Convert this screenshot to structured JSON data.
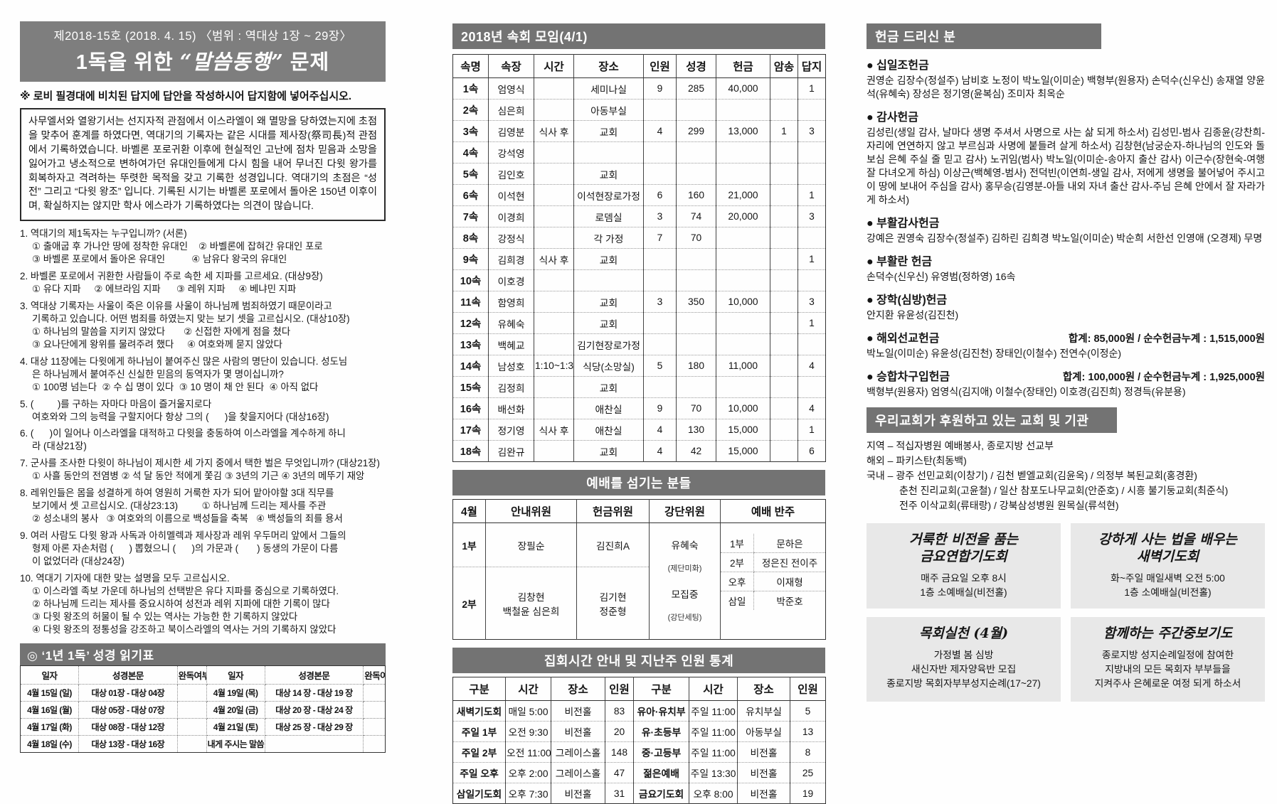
{
  "masthead": {
    "issue_line": "제2018-15호  (2018. 4. 15)  〈범위 : 역대상 1장 ~ 29장〉",
    "title_prefix": "1독을 위한",
    "title_quoted": "“말씀동행”",
    "title_suffix": "문제"
  },
  "left": {
    "notice": "※ 로비 필경대에 비치된 답지에 답안을 작성하시어 답지함에 넣어주십시오.",
    "intro": "사무엘서와 열왕기서는 선지자적 관점에서 이스라엘이 왜 멸망을 당하였는지에 초점을 맞추어 훈계를 하였다면, 역대기의 기록자는 같은 시대를 제사장(祭司長)적 관점에서 기록하였습니다. 바벨론 포로귀환 이후에 현실적인 고난에 점차 믿음과 소망을 잃어가고 냉소적으로 변하여가던 유대인들에게 다시 힘을 내어 무너진 다윗 왕가를 회복하자고 격려하는 뚜렷한 목적을 갖고 기록한 성경입니다. 역대기의 초점은 “성전” 그리고 “다윗 왕조” 입니다. 기록된 시기는 바벨론 포로에서 돌아온 150년 이후이며, 확실하지는 않지만 학사 에스라가 기록하였다는 의견이 많습니다.",
    "questions": [
      [
        "1. 역대기의 제1독자는 누구입니까? (서론)",
        "① 출애굽 후 가나안 땅에 정착한 유대인    ② 바벨론에 잡혀간 유대인 포로",
        "③ 바벨론 포로에서 돌아온 유대인          ④ 남유다 왕국의 유대인"
      ],
      [
        "2. 바벨론 포로에서 귀환한 사람들이 주로 속한 세 지파를 고르세요. (대상9장)",
        "① 유다 지파     ② 에브라임 지파      ③ 레위 지파     ④ 베냐민 지파"
      ],
      [
        "3. 역대상 기록자는 사울이 죽은 이유를 사울이 하나님께 범죄하였기 때문이라고",
        "기록하고 있습니다. 어떤 범죄를 하였는지 맞는 보기 셋을 고르십시오. (대상10장)",
        "① 하나님의 말씀을 지키지 않았다       ② 신접한 자에게 점을 쳤다",
        "③ 요나단에게 왕위를 물려주려 했다     ④ 여호와께 묻지 않았다"
      ],
      [
        "4. 대상 11장에는 다윗에게 하나님이 붙여주신 많은 사람의 명단이 있습니다. 성도님",
        "은 하나님께서 붙여주신 신실한 믿음의 동역자가 몇 명이십니까?",
        "① 100명 넘는다  ② 수 십 명이 있다  ③ 10 명이 채 안 된다  ④ 아직 없다"
      ],
      [
        "5. (         )를 구하는 자마다 마음이 즐거울지로다",
        "여호와와 그의 능력을 구할지어다 항상 그의 (      )을 찾을지어다 (대상16장)"
      ],
      [
        "6. (      )이 일어나 이스라엘을 대적하고 다윗을 충동하여 이스라엘을 계수하게 하니",
        "라 (대상21장)"
      ],
      [
        "7. 군사를 조사한 다윗이 하나님이 제시한 세 가지 중에서 택한 벌은 무엇입니까? (대상21장)",
        "① 사흘 동안의 전염병 ② 석 달 동안 적에게 쫓김 ③ 3년의 기근 ④ 3년의 메뚜기 재앙"
      ],
      [
        "8. 레위인들은 몸을 성결하게 하여 영원히 거룩한 자가 되어 맡아야할 3대 직무를",
        "보기에서 셋 고르십시오. (대상23:13)         ① 하나님께 드리는 제사를 주관",
        "② 성소내의 봉사   ③ 여호와의 이름으로 백성들을 축복   ④ 백성들의 죄를 용서"
      ],
      [
        "9. 여러 사람도 다윗 왕과 사독과 아히멜렉과 제사장과 레위 우두머리 앞에서 그들의",
        "형제 아론 자손처럼 (      ) 뽑혔으니 (      )의 가문과 (       ) 동생의 가문이 다름",
        "이 없었더라 (대상24장)"
      ],
      [
        "10. 역대기 기자에 대한 맞는 설명을 모두 고르십시오.",
        "① 이스라엘 족보 가운데 하나님의 선택받은 유다 지파를 중심으로 기록하였다.",
        "② 하나님께 드리는 제사를 중요시하여 성전과 레위 지파에 대한 기록이 많다",
        "③ 다윗 왕조의 허물이 될 수 있는 역사는 가능한 한 기록하지 않았다",
        "④ 다윗 왕조의 정통성을 강조하고 북이스라엘의 역사는 거의 기록하지 않았다"
      ]
    ],
    "reading": {
      "title": "◎  ‘1년 1독’   성경 읽기표",
      "headers": [
        "일자",
        "성경본문",
        "완독여부",
        "일자",
        "성경본문",
        "완독여부"
      ],
      "rows": [
        [
          "4월 15일 (일)",
          "대상 01장 - 대상 04장",
          "",
          "4월 19일 (목)",
          "대상 14 장 - 대상 19 장",
          ""
        ],
        [
          "4월 16일 (월)",
          "대상 05장 - 대상 07장",
          "",
          "4월 20일 (금)",
          "대상 20 장 - 대상 24 장",
          ""
        ],
        [
          "4월 17일 (화)",
          "대상 08장 - 대상 12장",
          "",
          "4월 21일 (토)",
          "대상 25 장 - 대상 29 장",
          ""
        ],
        [
          "4월 18일 (수)",
          "대상 13장 - 대상 16장",
          "",
          "내게 주시는 말씀",
          "",
          ""
        ]
      ]
    }
  },
  "middle": {
    "sokhoe": {
      "title": "2018년 속회 모임(4/1)",
      "headers": [
        "속명",
        "속장",
        "시간",
        "장소",
        "인원",
        "성경",
        "헌금",
        "암송",
        "답지"
      ],
      "rows": [
        [
          "1속",
          "엄영식",
          "",
          "세미나실",
          "9",
          "285",
          "40,000",
          "",
          "1"
        ],
        [
          "2속",
          "심은희",
          "",
          "아동부실",
          "",
          "",
          "",
          "",
          ""
        ],
        [
          "3속",
          "김영분",
          "식사 후",
          "교회",
          "4",
          "299",
          "13,000",
          "1",
          "3"
        ],
        [
          "4속",
          "강석영",
          "",
          "",
          "",
          "",
          "",
          "",
          ""
        ],
        [
          "5속",
          "김인호",
          "",
          "교회",
          "",
          "",
          "",
          "",
          ""
        ],
        [
          "6속",
          "이석현",
          "",
          "이석현장로가정",
          "6",
          "160",
          "21,000",
          "",
          "1"
        ],
        [
          "7속",
          "이경희",
          "",
          "로뎀실",
          "3",
          "74",
          "20,000",
          "",
          "3"
        ],
        [
          "8속",
          "강정식",
          "",
          "각 가정",
          "7",
          "70",
          "",
          "",
          ""
        ],
        [
          "9속",
          "김희경",
          "식사 후",
          "교회",
          "",
          "",
          "",
          "",
          "1"
        ],
        [
          "10속",
          "이호경",
          "",
          "",
          "",
          "",
          "",
          "",
          ""
        ],
        [
          "11속",
          "함영희",
          "",
          "교회",
          "3",
          "350",
          "10,000",
          "",
          "3"
        ],
        [
          "12속",
          "유혜숙",
          "",
          "교회",
          "",
          "",
          "",
          "",
          "1"
        ],
        [
          "13속",
          "백혜교",
          "",
          "김기현장로가정",
          "",
          "",
          "",
          "",
          ""
        ],
        [
          "14속",
          "남성호",
          "1:10~1:30",
          "식당(소망실)",
          "5",
          "180",
          "11,000",
          "",
          "4"
        ],
        [
          "15속",
          "김정희",
          "",
          "교회",
          "",
          "",
          "",
          "",
          ""
        ],
        [
          "16속",
          "배선화",
          "",
          "애찬실",
          "9",
          "70",
          "10,000",
          "",
          "4"
        ],
        [
          "17속",
          "정기영",
          "식사 후",
          "애찬실",
          "4",
          "130",
          "15,000",
          "",
          "1"
        ],
        [
          "18속",
          "김완규",
          "",
          "교회",
          "4",
          "42",
          "15,000",
          "",
          "6"
        ]
      ]
    },
    "worship": {
      "title": "예배를 섬기는 분들",
      "headers": [
        "4월",
        "안내위원",
        "헌금위원",
        "강단위원",
        "예배 반주"
      ],
      "r1_label": "1부",
      "r1_guide": "장필순",
      "r1_offering": "김진희A",
      "r2_label": "2부",
      "r2_guide": [
        "김창현",
        "백철윤 심은희"
      ],
      "r2_offering": [
        "김기현",
        "정준형"
      ],
      "altar": [
        "유혜숙",
        "(제단미화)",
        "모집중",
        "(강단세팅)"
      ],
      "accompanists": [
        [
          "1부",
          "문하은"
        ],
        [
          "2부",
          "정은진 전이주"
        ],
        [
          "오후",
          "이재형"
        ],
        [
          "삼일",
          "박준호"
        ]
      ]
    },
    "stats": {
      "title": "집회시간 안내 및 지난주 인원 통계",
      "headers": [
        "구분",
        "시간",
        "장소",
        "인원",
        "구분",
        "시간",
        "장소",
        "인원"
      ],
      "rows": [
        [
          "새벽기도회",
          "매일 5:00",
          "비전홀",
          "83",
          "유아·유치부",
          "주일 11:00",
          "유치부실",
          "5"
        ],
        [
          "주일 1부",
          "오전 9:30",
          "비전홀",
          "20",
          "유·초등부",
          "주일 11:00",
          "아동부실",
          "13"
        ],
        [
          "주일 2부",
          "오전 11:00",
          "그레이스홀",
          "148",
          "중·고등부",
          "주일 11:00",
          "비전홀",
          "8"
        ],
        [
          "주일 오후",
          "오후 2:00",
          "그레이스홀",
          "47",
          "젊은예배",
          "주일 13:30",
          "비전홀",
          "25"
        ],
        [
          "삼일기도회",
          "오후 7:30",
          "비전홀",
          "31",
          "금요기도회",
          "오후 8:00",
          "비전홀",
          "19"
        ]
      ]
    }
  },
  "right": {
    "offerings_title": "헌금 드리신 분",
    "sections": [
      {
        "name": "● 십일조헌금",
        "total": "",
        "body": "권영순 김장수(정설주) 남비호 노정이 박노일(이미순) 백형부(원용자) 손덕수(신우신) 송재열 양윤석(유혜숙) 장성은 정기영(윤복심) 조미자 최옥순"
      },
      {
        "name": "● 감사헌금",
        "total": "",
        "body": "김성린(생일 감사, 날마다 생명 주셔서 사명으로 사는 삶 되게 하소서) 김성민-범사 김종윤(강찬희-자리에 연연하지 않고 부르심과 사명에 붙들려 살게 하소서) 김창현(남궁순자-하나님의 인도와 돌보심 은혜 주실 줄 믿고 감사) 노귀임(범사) 박노일(이미순-송아지 출산 감사) 이근수(장현숙-여행 잘 다녀오게 하심) 이상근(백혜영-범사) 전덕빈(이연희-생일 감사, 저에게 생명을 불어넣어 주시고 이 땅에 보내어 주심을 감사) 홍무승(김영분-아들 내외 자녀 출산 감사-주님 은혜 안에서 잘 자라가게 하소서)"
      },
      {
        "name": "● 부활감사헌금",
        "total": "",
        "body": "강예은 권영숙 김장수(정설주) 김하린 김희경 박노일(이미순) 박순희 서한선 인영애 (오경제) 무명"
      },
      {
        "name": "● 부활란 헌금",
        "total": "",
        "body": "손덕수(신우신) 유영범(정하영) 16속"
      },
      {
        "name": "● 장학(심방)헌금",
        "total": "",
        "body": "안지환 유윤성(김진천)"
      },
      {
        "name": "● 해외선교헌금",
        "total": "합계:  85,000원 / 순수헌금누계 : 1,515,000원",
        "body": "박노일(이미순) 유윤성(김진천) 장태인(이철수) 전연수(이정순)"
      },
      {
        "name": "● 승합차구입헌금",
        "total": "합계: 100,000원 / 순수헌금누계 : 1,925,000원",
        "body": "백형부(원용자) 엄영식(김지애) 이철수(장태인) 이호경(김진희) 정경득(유분용)"
      }
    ],
    "support_title": "우리교회가 후원하고 있는 교회 및 기관",
    "support_lines": [
      "지역 – 적십자병원 예배봉사, 종로지방 선교부",
      "해외 – 파키스탄(최동백)",
      "국내 – 광주 선민교회(이창기) / 김천 벧엘교회(김윤옥) / 의정부 복된교회(홍경환)",
      "춘천 진리교회(고윤철) / 일산 참포도나무교회(안준호) / 시흥 불기둥교회(최준식)",
      "전주 이삭교회(류태랑) / 강북삼성병원 원목실(류석현)"
    ],
    "boxes": [
      {
        "title": [
          "거룩한 비전을 품는",
          "금요연합기도회"
        ],
        "body": [
          "매주 금요일 오후 8시",
          "1층 소예배실(비전홀)"
        ]
      },
      {
        "title": [
          "강하게 사는 법을 배우는",
          "새벽기도회"
        ],
        "body": [
          "화~주일 매일새벽 오전 5:00",
          "1층 소예배실(비전홀)"
        ]
      },
      {
        "title": [
          "목회실천 (4월)"
        ],
        "body": [
          "가정별 봄 심방",
          "새신자반 제자양육반 모집",
          "종로지방 목회자부부성지순례(17~27)"
        ]
      },
      {
        "title": [
          "함께하는 주간중보기도"
        ],
        "body": [
          "종로지방 성지순례일정에 참여한",
          "지방내의 모든 목회자 부부들을",
          "지켜주사 은혜로운 여정 되게 하소서"
        ]
      }
    ]
  }
}
